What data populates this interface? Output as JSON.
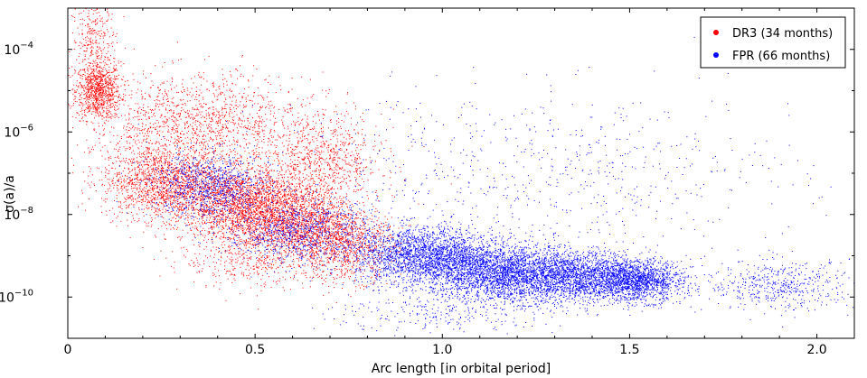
{
  "chart_data": {
    "type": "scatter",
    "title": "",
    "xlabel": "Arc length [in orbital period]",
    "ylabel": "σ(a)/a",
    "xlim": [
      0,
      2.1
    ],
    "ylim_log10": [
      -11.0,
      -3.0
    ],
    "y_scale": "log",
    "x_ticks": [
      {
        "value": 0,
        "label": "0"
      },
      {
        "value": 0.5,
        "label": "0.5"
      },
      {
        "value": 1.0,
        "label": "1.0"
      },
      {
        "value": 1.5,
        "label": "1.5"
      },
      {
        "value": 2.0,
        "label": "2.0"
      }
    ],
    "y_ticks": [
      {
        "value_log10": -4,
        "base": "10",
        "exponent": "−4"
      },
      {
        "value_log10": -6,
        "base": "10",
        "exponent": "−6"
      },
      {
        "value_log10": -8,
        "base": "10",
        "exponent": "−8"
      },
      {
        "value_log10": -10,
        "base": "10",
        "exponent": "−10"
      }
    ],
    "grid": false,
    "legend_position": "top-right",
    "series": [
      {
        "name": "DR3 (34 months)",
        "color": "#ff0000",
        "clusters": [
          {
            "x": 0.08,
            "y_log10": -5.0
          },
          {
            "x": 0.07,
            "y_log10": -3.7
          },
          {
            "x": 0.15,
            "y_log10": -7.0
          },
          {
            "x": 0.25,
            "y_log10": -7.3
          },
          {
            "x": 0.3,
            "y_log10": -5.7
          },
          {
            "x": 0.4,
            "y_log10": -7.5
          },
          {
            "x": 0.5,
            "y_log10": -8.0
          },
          {
            "x": 0.5,
            "y_log10": -6.0
          },
          {
            "x": 0.6,
            "y_log10": -8.3
          },
          {
            "x": 0.7,
            "y_log10": -6.6
          },
          {
            "x": 0.75,
            "y_log10": -8.8
          }
        ]
      },
      {
        "name": "FPR (66 months)",
        "color": "#0000ff",
        "clusters": [
          {
            "x": 0.35,
            "y_log10": -7.2
          },
          {
            "x": 0.6,
            "y_log10": -8.3
          },
          {
            "x": 0.9,
            "y_log10": -9.0
          },
          {
            "x": 1.05,
            "y_log10": -9.4
          },
          {
            "x": 1.25,
            "y_log10": -9.5
          },
          {
            "x": 1.45,
            "y_log10": -9.6
          },
          {
            "x": 1.55,
            "y_log10": -9.6
          },
          {
            "x": 1.9,
            "y_log10": -9.7
          },
          {
            "x": 1.2,
            "y_log10": -6.5
          },
          {
            "x": 1.6,
            "y_log10": -7.5
          }
        ]
      }
    ]
  }
}
